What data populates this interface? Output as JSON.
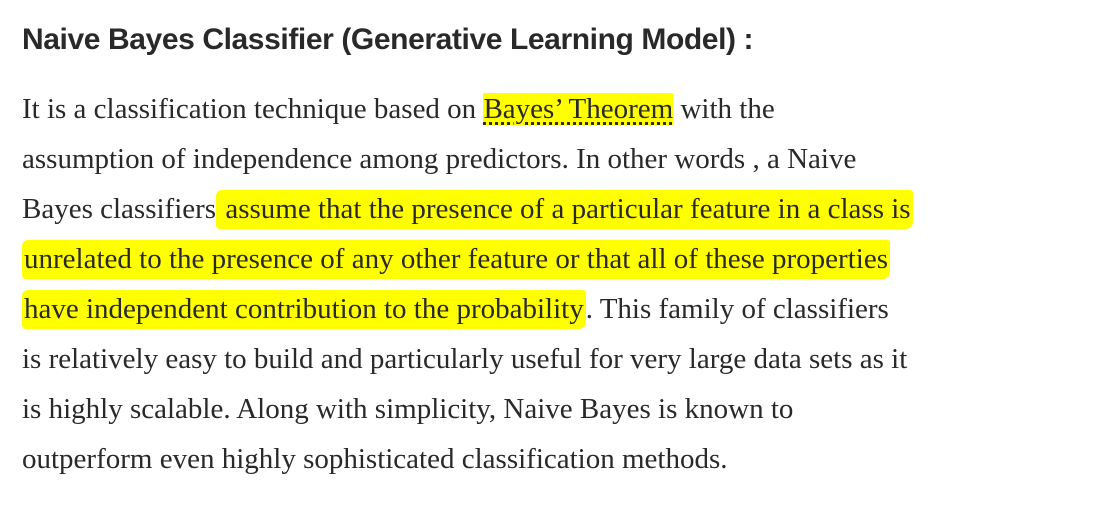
{
  "heading": "Naive Bayes Classifier (Generative Learning Model) :",
  "paragraph": {
    "line1_before": "It is a classification technique based on ",
    "line1_link": "Bayes’ Theorem",
    "line1_after": " with the",
    "line2": "assumption of independence among predictors. In other words , a Naive",
    "line3_before": "Bayes classifiers",
    "line3_highlight": " assume that the presence of a particular feature in a class is",
    "line4_highlight": "unrelated to the presence of any other feature or that all of these properties",
    "line5_highlight": "have independent contribution to the probability",
    "line5_after": ". This family of classifiers",
    "line6": "is relatively easy to build and particularly useful for very large data sets as it",
    "line7": "is highly scalable. Along with simplicity, Naive Bayes is known to",
    "line8": "outperform even highly sophisticated classification methods."
  },
  "colors": {
    "highlight": "#ffff00",
    "text": "#292929",
    "background": "#ffffff"
  }
}
